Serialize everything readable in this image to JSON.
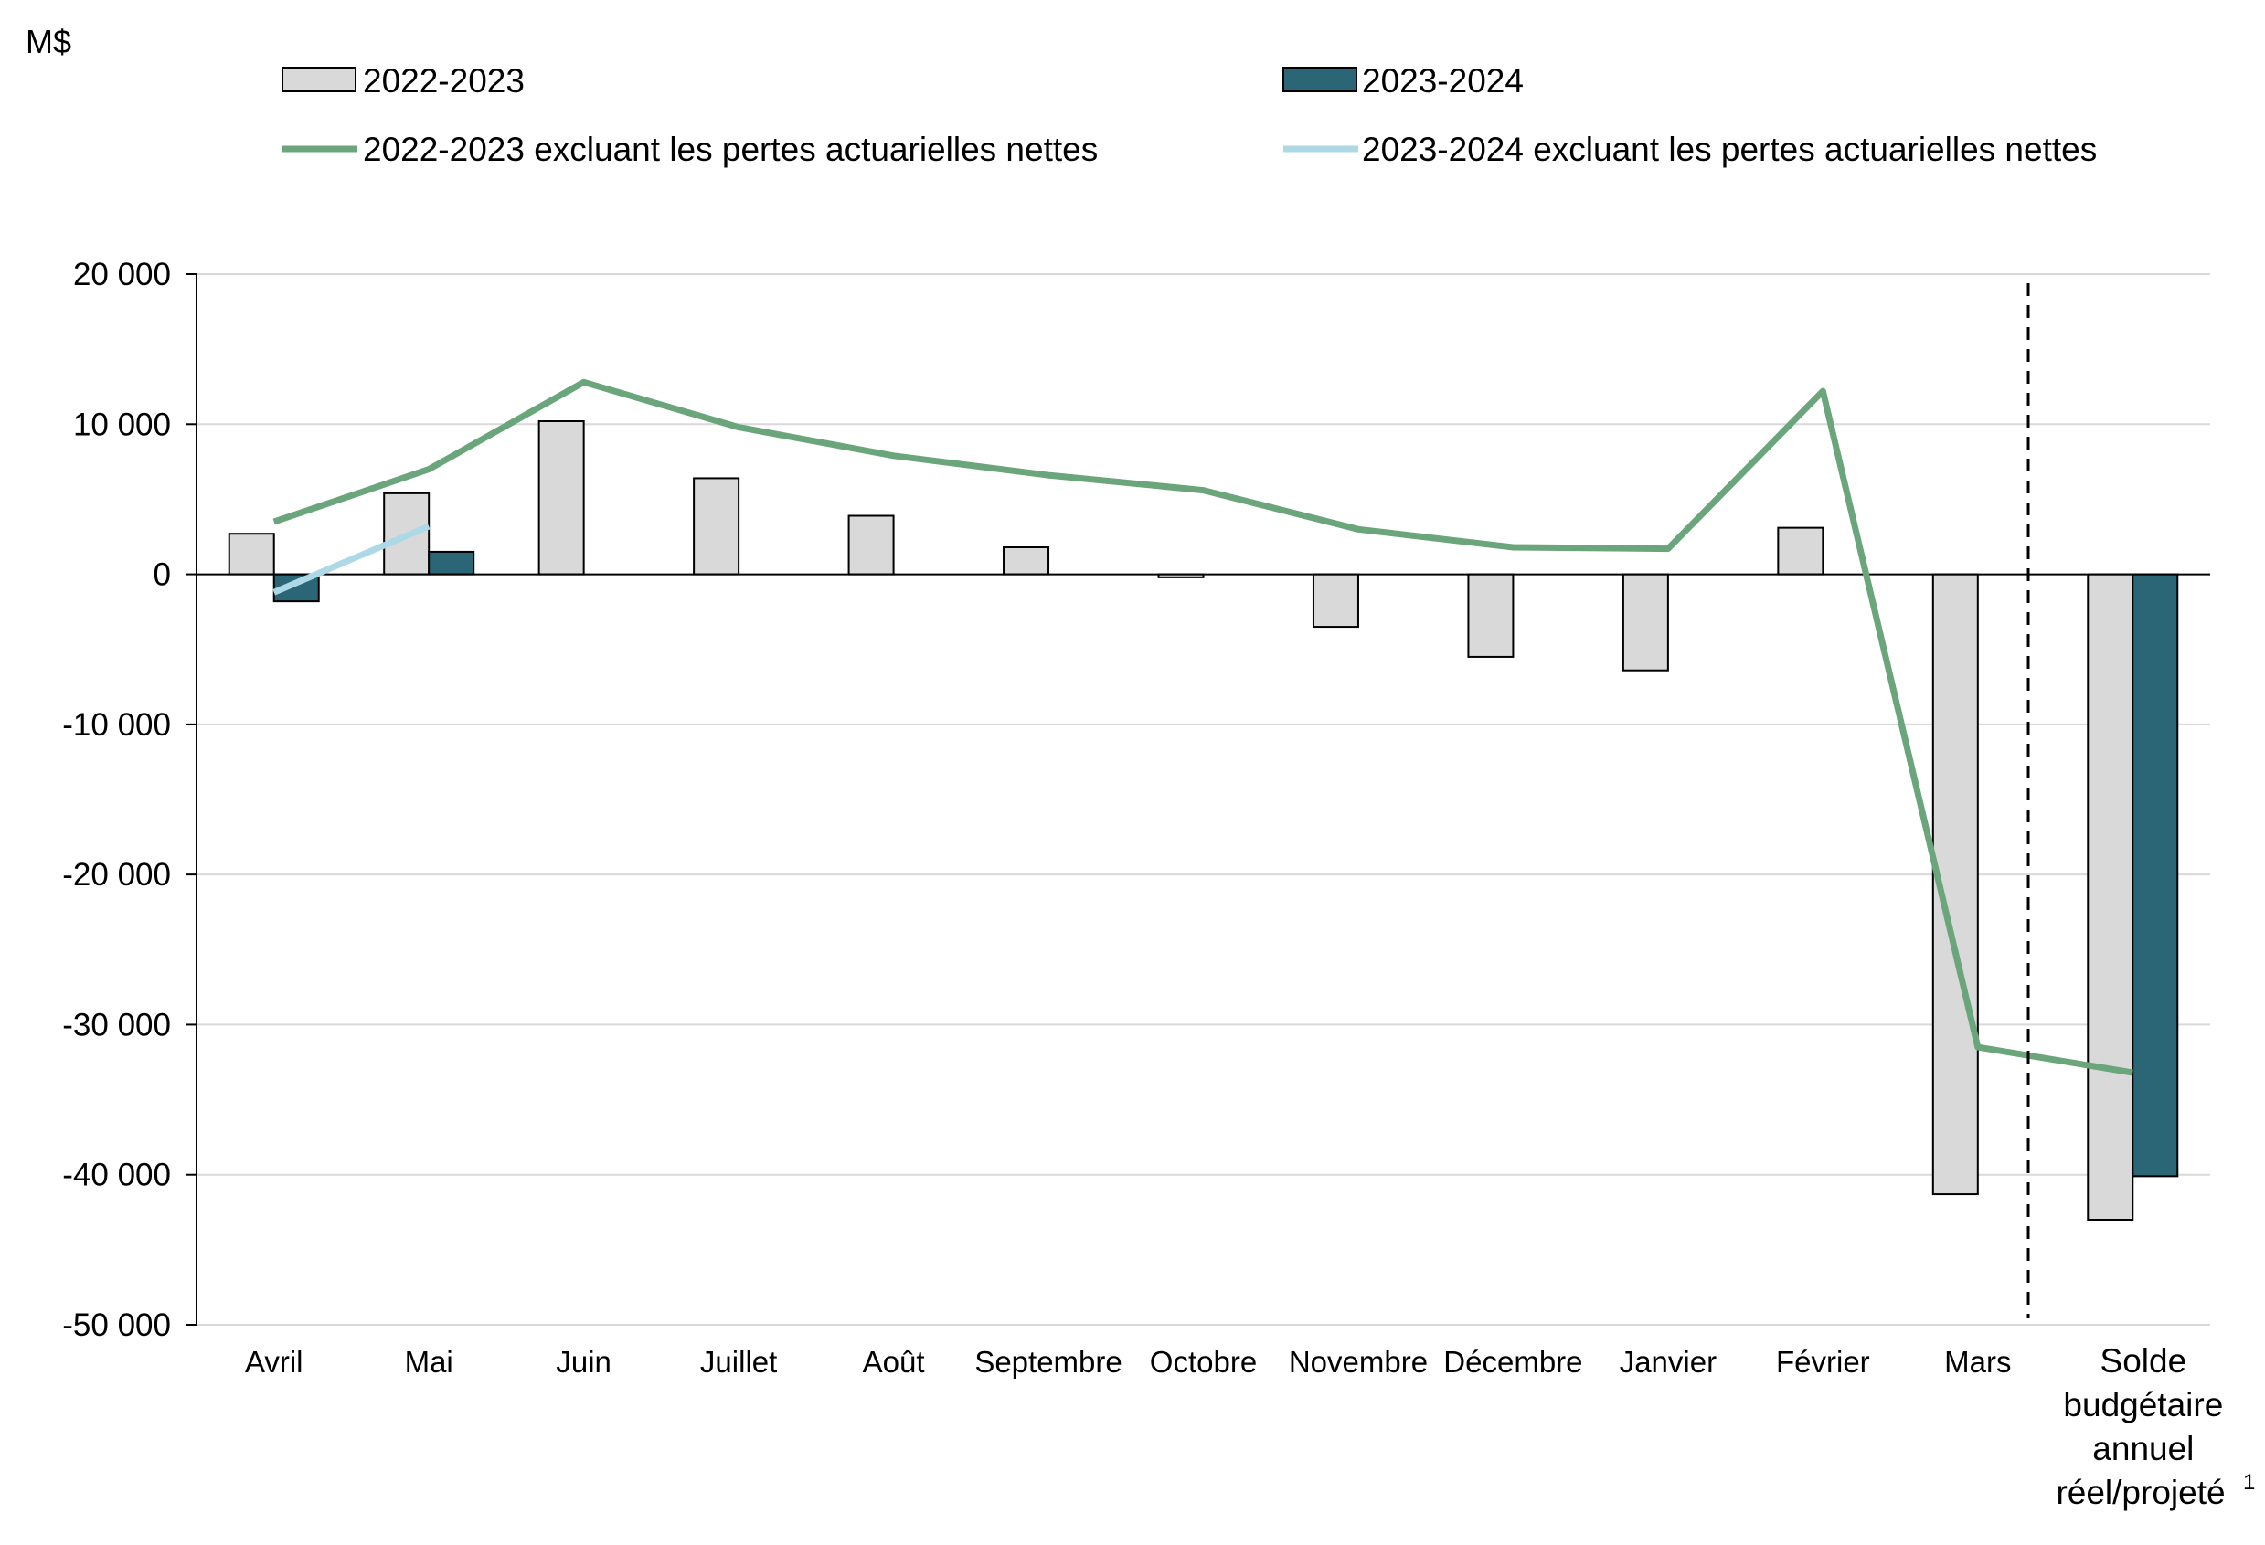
{
  "chart_data": {
    "type": "bar",
    "unit_label": "M$",
    "categories": [
      "Avril",
      "Mai",
      "Juin",
      "Juillet",
      "Août",
      "Septembre",
      "Octobre",
      "Novembre",
      "Décembre",
      "Janvier",
      "Février",
      "Mars"
    ],
    "annual_category": {
      "lines": [
        "Solde",
        "budgétaire",
        "annuel",
        "réel/projeté"
      ],
      "footnote": "1"
    },
    "ylim": [
      -50000,
      20000
    ],
    "yticks": [
      20000,
      10000,
      0,
      -10000,
      -20000,
      -30000,
      -40000,
      -50000
    ],
    "ytick_labels": [
      "20 000",
      "10 000",
      "0",
      "-10 000",
      "-20 000",
      "-30 000",
      "-40 000",
      "-50 000"
    ],
    "grid": true,
    "legend_position": "top",
    "series": [
      {
        "name": "2022-2023",
        "kind": "bar",
        "color": "#d9d9d9",
        "stroke": "#000000",
        "values": [
          2700,
          5400,
          10200,
          6400,
          3900,
          1800,
          -200,
          -3500,
          -5500,
          -6400,
          3100,
          -41300
        ],
        "annual": -43000
      },
      {
        "name": "2023-2024",
        "kind": "bar",
        "color": "#2b6677",
        "stroke": "#000000",
        "values": [
          -1800,
          1500,
          null,
          null,
          null,
          null,
          null,
          null,
          null,
          null,
          null,
          null
        ],
        "annual": -40100
      },
      {
        "name": "2022-2023 excluant les pertes actuarielles nettes",
        "kind": "line",
        "color": "#6aa57b",
        "values": [
          3500,
          7000,
          12800,
          9800,
          7900,
          6600,
          5600,
          3000,
          1800,
          1700,
          12200,
          -31500
        ],
        "annual": -33200
      },
      {
        "name": "2023-2024 excluant les pertes actuarielles nettes",
        "kind": "line",
        "color": "#add8e6",
        "values": [
          -1200,
          3200,
          null,
          null,
          null,
          null,
          null,
          null,
          null,
          null,
          null,
          null
        ],
        "annual": null
      }
    ]
  }
}
